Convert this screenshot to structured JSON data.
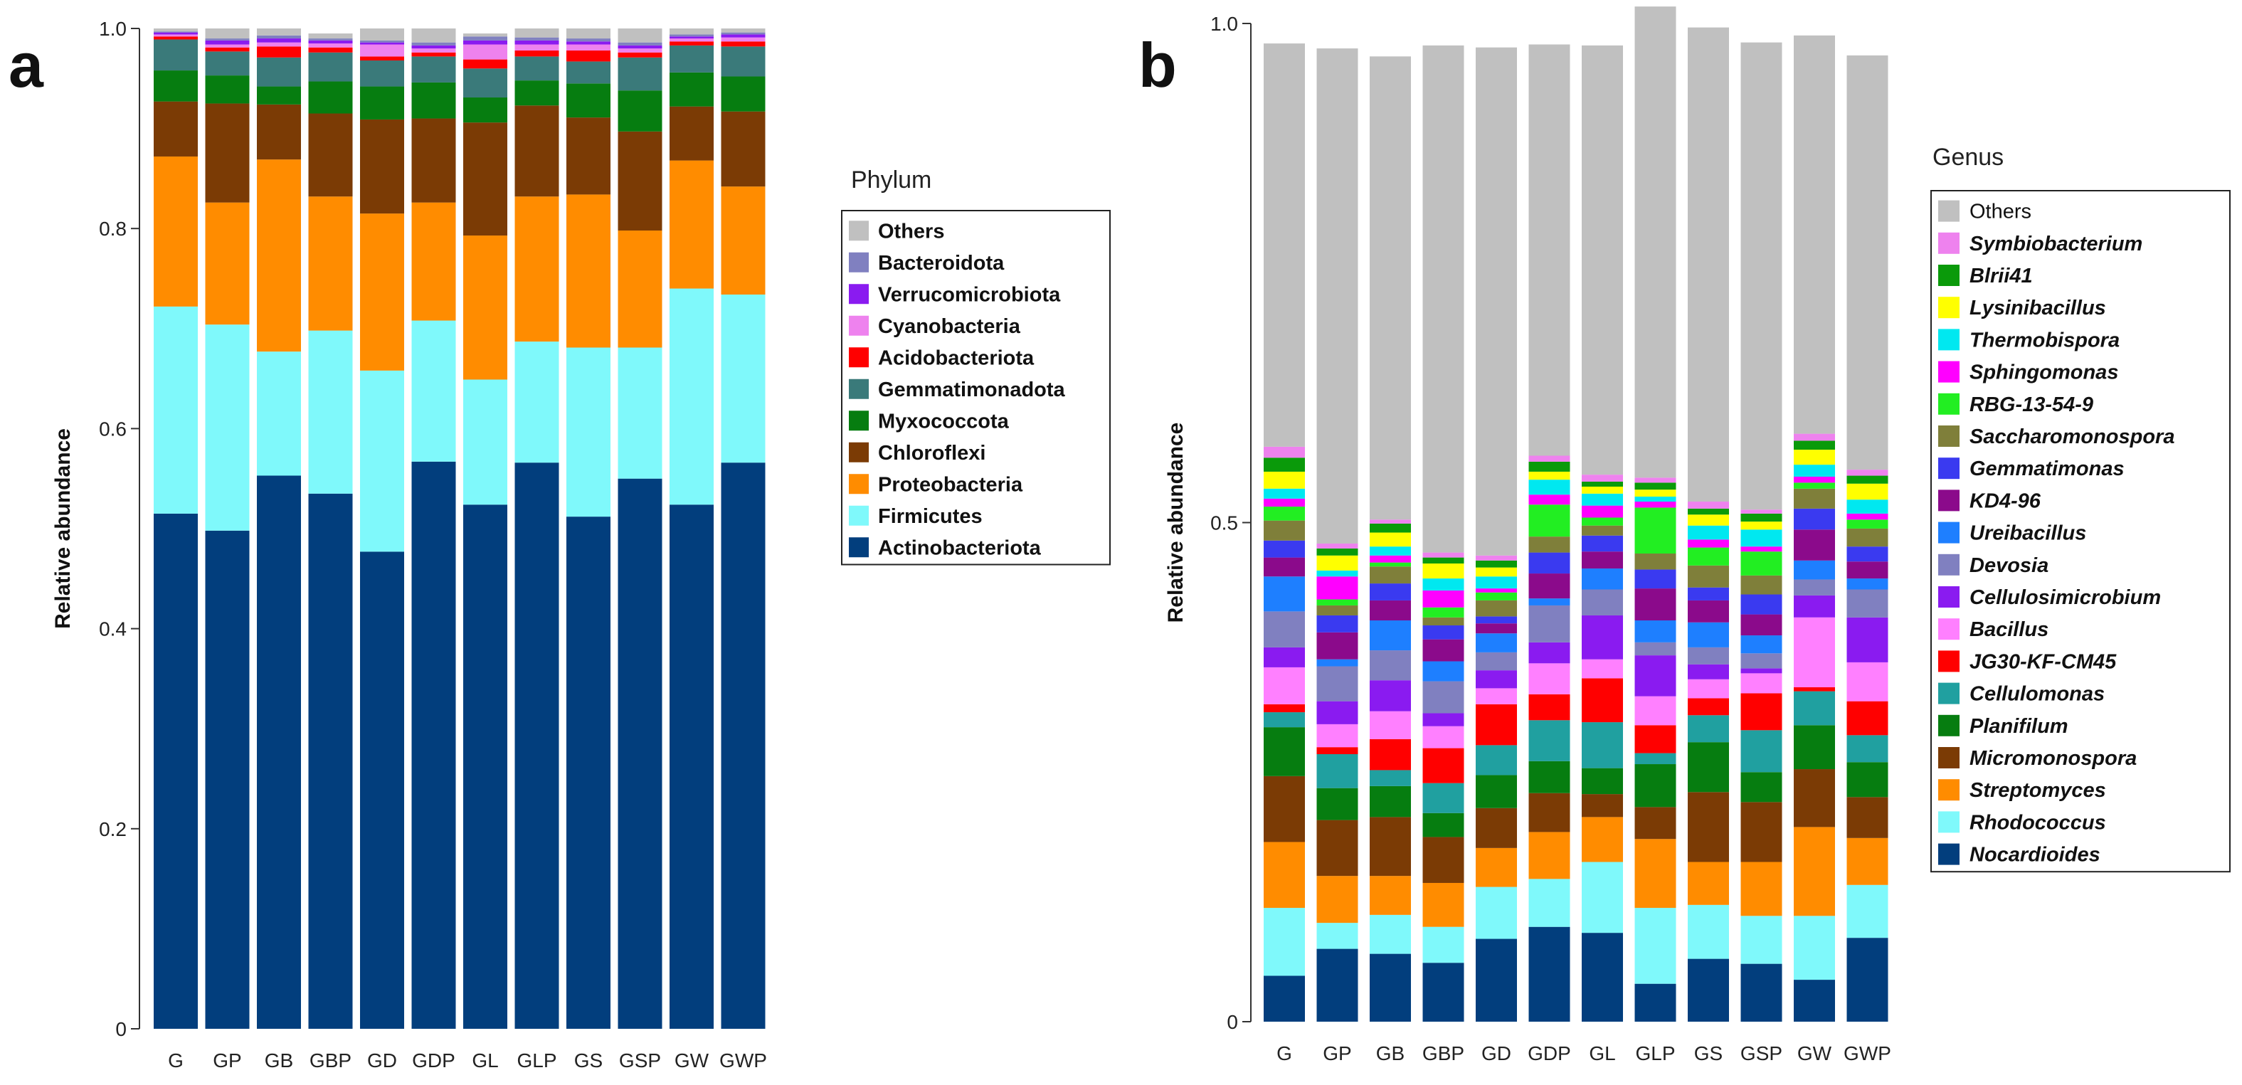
{
  "chart_data": [
    {
      "panel": "a",
      "type": "stacked-bar",
      "title": "",
      "xlabel": "",
      "ylabel": "Relative abundance",
      "ylim": [
        0,
        1
      ],
      "yticks": [
        "0",
        "0.2",
        "0.4",
        "0.6",
        "0.8",
        "1.0"
      ],
      "ytick_values": [
        0,
        0.2,
        0.4,
        0.6,
        0.8,
        1.0
      ],
      "categories": [
        "G",
        "GP",
        "GB",
        "GBP",
        "GD",
        "GDP",
        "GL",
        "GLP",
        "GS",
        "GSP",
        "GW",
        "GWP"
      ],
      "legend_title": "Phylum",
      "series": [
        {
          "name": "Actinobacteriota",
          "color": "#023e7d",
          "italic": false,
          "values": [
            0.515,
            0.498,
            0.553,
            0.535,
            0.477,
            0.567,
            0.524,
            0.566,
            0.512,
            0.55,
            0.524,
            0.566
          ]
        },
        {
          "name": "Firmicutes",
          "color": "#7ff9fb",
          "italic": false,
          "values": [
            0.207,
            0.206,
            0.124,
            0.163,
            0.181,
            0.141,
            0.125,
            0.121,
            0.169,
            0.131,
            0.216,
            0.168
          ]
        },
        {
          "name": "Proteobacteria",
          "color": "#ff8c00",
          "italic": false,
          "values": [
            0.15,
            0.122,
            0.192,
            0.134,
            0.157,
            0.118,
            0.144,
            0.145,
            0.153,
            0.117,
            0.128,
            0.108
          ]
        },
        {
          "name": "Chloroflexi",
          "color": "#7b3b05",
          "italic": false,
          "values": [
            0.055,
            0.099,
            0.055,
            0.083,
            0.094,
            0.084,
            0.113,
            0.091,
            0.077,
            0.099,
            0.054,
            0.075
          ]
        },
        {
          "name": "Myxococcota",
          "color": "#067d10",
          "italic": false,
          "values": [
            0.031,
            0.028,
            0.018,
            0.032,
            0.033,
            0.036,
            0.025,
            0.025,
            0.034,
            0.041,
            0.034,
            0.035
          ]
        },
        {
          "name": "Gemmatimonadota",
          "color": "#3a7a7a",
          "italic": false,
          "values": [
            0.031,
            0.024,
            0.029,
            0.029,
            0.026,
            0.026,
            0.029,
            0.024,
            0.022,
            0.033,
            0.027,
            0.03
          ]
        },
        {
          "name": "Acidobacteriota",
          "color": "#ff0000",
          "italic": false,
          "values": [
            0.003,
            0.004,
            0.011,
            0.005,
            0.004,
            0.004,
            0.009,
            0.006,
            0.011,
            0.005,
            0.004,
            0.005
          ]
        },
        {
          "name": "Cyanobacteria",
          "color": "#ee82ee",
          "italic": false,
          "values": [
            0.002,
            0.003,
            0.004,
            0.004,
            0.012,
            0.004,
            0.015,
            0.006,
            0.006,
            0.004,
            0.003,
            0.004
          ]
        },
        {
          "name": "Verrucomicrobiota",
          "color": "#8a1bf0",
          "italic": false,
          "values": [
            0.002,
            0.004,
            0.004,
            0.003,
            0.002,
            0.003,
            0.004,
            0.004,
            0.003,
            0.003,
            0.002,
            0.003
          ]
        },
        {
          "name": "Bacteroidota",
          "color": "#8080c0",
          "italic": false,
          "values": [
            0.001,
            0.002,
            0.003,
            0.002,
            0.002,
            0.003,
            0.004,
            0.003,
            0.003,
            0.003,
            0.002,
            0.002
          ]
        },
        {
          "name": "Others",
          "color": "#c0c0c0",
          "italic": false,
          "values": [
            0.003,
            0.01,
            0.007,
            0.005,
            0.012,
            0.014,
            0.003,
            0.009,
            0.01,
            0.014,
            0.006,
            0.004
          ]
        }
      ]
    },
    {
      "panel": "b",
      "type": "stacked-bar",
      "title": "",
      "xlabel": "",
      "ylabel": "Relative abundance",
      "ylim": [
        0,
        1
      ],
      "yticks": [
        "0",
        "0.5",
        "1.0"
      ],
      "ytick_values": [
        0,
        0.5,
        1.0
      ],
      "categories": [
        "G",
        "GP",
        "GB",
        "GBP",
        "GD",
        "GDP",
        "GL",
        "GLP",
        "GS",
        "GSP",
        "GW",
        "GWP"
      ],
      "legend_title": "Genus",
      "series": [
        {
          "name": "Nocardioides",
          "color": "#023e7d",
          "italic": true,
          "values": [
            0.046,
            0.073,
            0.068,
            0.059,
            0.083,
            0.095,
            0.089,
            0.038,
            0.063,
            0.058,
            0.042,
            0.084
          ]
        },
        {
          "name": "Rhodococcus",
          "color": "#7ff9fb",
          "italic": true,
          "values": [
            0.068,
            0.026,
            0.039,
            0.036,
            0.052,
            0.048,
            0.071,
            0.076,
            0.054,
            0.048,
            0.064,
            0.053
          ]
        },
        {
          "name": "Streptomyces",
          "color": "#ff8c00",
          "italic": true,
          "values": [
            0.066,
            0.047,
            0.039,
            0.044,
            0.039,
            0.047,
            0.045,
            0.069,
            0.043,
            0.054,
            0.089,
            0.047
          ]
        },
        {
          "name": "Micromonospora",
          "color": "#7b3b05",
          "italic": true,
          "values": [
            0.066,
            0.056,
            0.059,
            0.046,
            0.04,
            0.039,
            0.023,
            0.032,
            0.07,
            0.06,
            0.058,
            0.041
          ]
        },
        {
          "name": "Planifilum",
          "color": "#067d10",
          "italic": true,
          "values": [
            0.049,
            0.032,
            0.031,
            0.024,
            0.033,
            0.032,
            0.026,
            0.043,
            0.05,
            0.03,
            0.044,
            0.035
          ]
        },
        {
          "name": "Cellulomonas",
          "color": "#20a0a0",
          "italic": true,
          "values": [
            0.015,
            0.034,
            0.016,
            0.03,
            0.03,
            0.041,
            0.046,
            0.011,
            0.027,
            0.042,
            0.034,
            0.027
          ]
        },
        {
          "name": "JG30-KF-CM45",
          "color": "#ff0000",
          "italic": true,
          "values": [
            0.008,
            0.007,
            0.031,
            0.035,
            0.041,
            0.026,
            0.044,
            0.028,
            0.017,
            0.037,
            0.004,
            0.034
          ]
        },
        {
          "name": "Bacillus",
          "color": "#ff80ff",
          "italic": true,
          "values": [
            0.037,
            0.023,
            0.028,
            0.022,
            0.016,
            0.031,
            0.019,
            0.029,
            0.019,
            0.02,
            0.07,
            0.039
          ]
        },
        {
          "name": "Cellulosimicrobium",
          "color": "#8a1bf0",
          "italic": true,
          "values": [
            0.02,
            0.023,
            0.031,
            0.013,
            0.018,
            0.021,
            0.044,
            0.041,
            0.015,
            0.005,
            0.022,
            0.045
          ]
        },
        {
          "name": "Devosia",
          "color": "#8080c0",
          "italic": true,
          "values": [
            0.036,
            0.035,
            0.03,
            0.032,
            0.018,
            0.037,
            0.026,
            0.013,
            0.017,
            0.015,
            0.016,
            0.028
          ]
        },
        {
          "name": "Ureibacillus",
          "color": "#1e7fff",
          "italic": true,
          "values": [
            0.035,
            0.007,
            0.03,
            0.02,
            0.019,
            0.007,
            0.021,
            0.022,
            0.025,
            0.018,
            0.019,
            0.011
          ]
        },
        {
          "name": "KD4-96",
          "color": "#8b0a8b",
          "italic": true,
          "values": [
            0.019,
            0.027,
            0.02,
            0.022,
            0.01,
            0.025,
            0.017,
            0.032,
            0.022,
            0.021,
            0.031,
            0.017
          ]
        },
        {
          "name": "Gemmatimonas",
          "color": "#3a3af0",
          "italic": true,
          "values": [
            0.017,
            0.017,
            0.017,
            0.014,
            0.007,
            0.021,
            0.016,
            0.019,
            0.013,
            0.02,
            0.021,
            0.015
          ]
        },
        {
          "name": "Saccharomonospora",
          "color": "#7f7f3a",
          "italic": true,
          "values": [
            0.02,
            0.01,
            0.017,
            0.008,
            0.016,
            0.016,
            0.01,
            0.016,
            0.022,
            0.019,
            0.02,
            0.018
          ]
        },
        {
          "name": "RBG-13-54-9",
          "color": "#22ee22",
          "italic": true,
          "values": [
            0.014,
            0.006,
            0.004,
            0.01,
            0.008,
            0.032,
            0.008,
            0.046,
            0.018,
            0.024,
            0.006,
            0.009
          ]
        },
        {
          "name": "Sphingomonas",
          "color": "#ff00ff",
          "italic": true,
          "values": [
            0.008,
            0.023,
            0.007,
            0.017,
            0.004,
            0.01,
            0.012,
            0.006,
            0.008,
            0.005,
            0.006,
            0.006
          ]
        },
        {
          "name": "Thermobispora",
          "color": "#00e8f0",
          "italic": true,
          "values": [
            0.01,
            0.006,
            0.009,
            0.012,
            0.012,
            0.015,
            0.012,
            0.005,
            0.014,
            0.017,
            0.012,
            0.014
          ]
        },
        {
          "name": "Lysinibacillus",
          "color": "#ffff00",
          "italic": true,
          "values": [
            0.017,
            0.015,
            0.014,
            0.015,
            0.009,
            0.008,
            0.007,
            0.007,
            0.011,
            0.008,
            0.015,
            0.016
          ]
        },
        {
          "name": "Blrii41",
          "color": "#0a9a0a",
          "italic": true,
          "values": [
            0.014,
            0.007,
            0.009,
            0.006,
            0.007,
            0.01,
            0.005,
            0.007,
            0.006,
            0.008,
            0.009,
            0.008
          ]
        },
        {
          "name": "Symbiobacterium",
          "color": "#ee82ee",
          "italic": true,
          "values": [
            0.011,
            0.005,
            0.004,
            0.005,
            0.005,
            0.006,
            0.007,
            0.005,
            0.007,
            0.004,
            0.007,
            0.006
          ]
        },
        {
          "name": "Others",
          "color": "#c0c0c0",
          "italic": false,
          "values": [
            0.404,
            0.496,
            0.464,
            0.508,
            0.509,
            0.412,
            0.43,
            0.472,
            0.475,
            0.468,
            0.399,
            0.415
          ]
        }
      ]
    }
  ],
  "panels": {
    "a_label": "a",
    "b_label": "b"
  }
}
